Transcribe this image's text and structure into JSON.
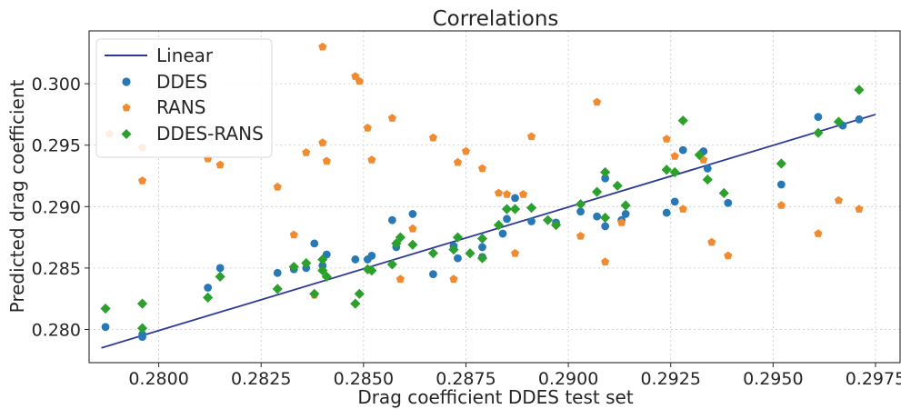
{
  "chart_data": {
    "type": "scatter",
    "title": "Correlations",
    "xlabel": "Drag coefficient DDES test set",
    "ylabel": "Predicted drag coefficient",
    "xlim": [
      0.2783,
      0.2981
    ],
    "ylim": [
      0.2773,
      0.3043
    ],
    "xticks": [
      0.28,
      0.2825,
      0.285,
      0.2875,
      0.29,
      0.2925,
      0.295,
      0.2975
    ],
    "xtick_labels": [
      "0.2800",
      "0.2825",
      "0.2850",
      "0.2875",
      "0.2900",
      "0.2925",
      "0.2950",
      "0.2975"
    ],
    "yticks": [
      0.28,
      0.285,
      0.29,
      0.295,
      0.3
    ],
    "ytick_labels": [
      "0.280",
      "0.285",
      "0.290",
      "0.295",
      "0.300"
    ],
    "grid": true,
    "legend_position": "top-left",
    "series": [
      {
        "name": "Linear",
        "type": "line",
        "color": "#2e3a9a",
        "x": [
          0.2786,
          0.2975
        ],
        "y": [
          0.2785,
          0.2975
        ]
      },
      {
        "name": "DDES",
        "type": "scatter",
        "marker": "circle",
        "color": "#2878b5",
        "x": [
          0.2787,
          0.2796,
          0.2796,
          0.2812,
          0.2815,
          0.2829,
          0.2833,
          0.2836,
          0.2838,
          0.284,
          0.2841,
          0.2848,
          0.2851,
          0.2852,
          0.2857,
          0.2858,
          0.2862,
          0.2867,
          0.2872,
          0.2873,
          0.2879,
          0.2879,
          0.2884,
          0.2885,
          0.2887,
          0.2891,
          0.2897,
          0.2903,
          0.2907,
          0.2909,
          0.2909,
          0.2913,
          0.2914,
          0.2924,
          0.2926,
          0.2928,
          0.2933,
          0.2934,
          0.2939,
          0.2952,
          0.2961,
          0.2967,
          0.2971
        ],
        "y": [
          0.2802,
          0.2794,
          0.2796,
          0.2834,
          0.285,
          0.2846,
          0.2849,
          0.285,
          0.287,
          0.2852,
          0.2861,
          0.2857,
          0.2857,
          0.286,
          0.2889,
          0.2867,
          0.2894,
          0.2845,
          0.2868,
          0.2858,
          0.2867,
          0.2859,
          0.2878,
          0.289,
          0.2907,
          0.2888,
          0.2887,
          0.2896,
          0.2892,
          0.2884,
          0.2923,
          0.2889,
          0.2894,
          0.2895,
          0.2904,
          0.2946,
          0.2945,
          0.2931,
          0.2903,
          0.2918,
          0.2973,
          0.2966,
          0.2971
        ]
      },
      {
        "name": "RANS",
        "type": "scatter",
        "marker": "pentagon",
        "color": "#f28b30",
        "x": [
          0.2788,
          0.2796,
          0.2796,
          0.2812,
          0.2815,
          0.2829,
          0.2833,
          0.2836,
          0.2838,
          0.284,
          0.284,
          0.2841,
          0.2848,
          0.2849,
          0.2851,
          0.2852,
          0.2857,
          0.2859,
          0.2862,
          0.2867,
          0.2872,
          0.2873,
          0.2875,
          0.2879,
          0.2883,
          0.2885,
          0.2887,
          0.2889,
          0.2891,
          0.2903,
          0.2907,
          0.2909,
          0.2913,
          0.2924,
          0.2926,
          0.2928,
          0.2933,
          0.2935,
          0.2939,
          0.2952,
          0.2961,
          0.2966,
          0.2971
        ],
        "y": [
          0.2959,
          0.2948,
          0.2921,
          0.2939,
          0.2934,
          0.2916,
          0.2877,
          0.2944,
          0.2828,
          0.303,
          0.2952,
          0.2937,
          0.3006,
          0.3002,
          0.2964,
          0.2938,
          0.2972,
          0.2841,
          0.2882,
          0.2956,
          0.2841,
          0.2936,
          0.2945,
          0.2931,
          0.2911,
          0.291,
          0.2862,
          0.291,
          0.2957,
          0.2876,
          0.2985,
          0.2855,
          0.2887,
          0.2955,
          0.2941,
          0.2898,
          0.2938,
          0.2871,
          0.286,
          0.2901,
          0.2878,
          0.2905,
          0.2898
        ]
      },
      {
        "name": "DDES-RANS",
        "type": "scatter",
        "marker": "diamond",
        "color": "#2ca02c",
        "x": [
          0.2787,
          0.2796,
          0.2796,
          0.2812,
          0.2815,
          0.2829,
          0.2833,
          0.2836,
          0.2838,
          0.284,
          0.284,
          0.2841,
          0.2848,
          0.2849,
          0.2851,
          0.2852,
          0.2857,
          0.2858,
          0.2859,
          0.2862,
          0.2867,
          0.2872,
          0.2873,
          0.2876,
          0.2879,
          0.2879,
          0.2883,
          0.2885,
          0.2887,
          0.2891,
          0.2895,
          0.2897,
          0.2903,
          0.2907,
          0.2909,
          0.2909,
          0.2912,
          0.2914,
          0.2924,
          0.2926,
          0.2928,
          0.2932,
          0.2934,
          0.2938,
          0.2952,
          0.2961,
          0.2966,
          0.2971
        ],
        "y": [
          0.2817,
          0.2821,
          0.2801,
          0.2826,
          0.2843,
          0.2833,
          0.2851,
          0.2854,
          0.2829,
          0.2857,
          0.2848,
          0.2843,
          0.2821,
          0.2829,
          0.2849,
          0.2848,
          0.2853,
          0.287,
          0.2875,
          0.2869,
          0.2862,
          0.2865,
          0.2875,
          0.2862,
          0.2874,
          0.2858,
          0.2885,
          0.2898,
          0.2898,
          0.2899,
          0.2889,
          0.2885,
          0.2902,
          0.2912,
          0.2928,
          0.2891,
          0.2917,
          0.2901,
          0.293,
          0.2928,
          0.297,
          0.2942,
          0.2922,
          0.2911,
          0.2935,
          0.296,
          0.2969,
          0.2995
        ]
      }
    ]
  }
}
